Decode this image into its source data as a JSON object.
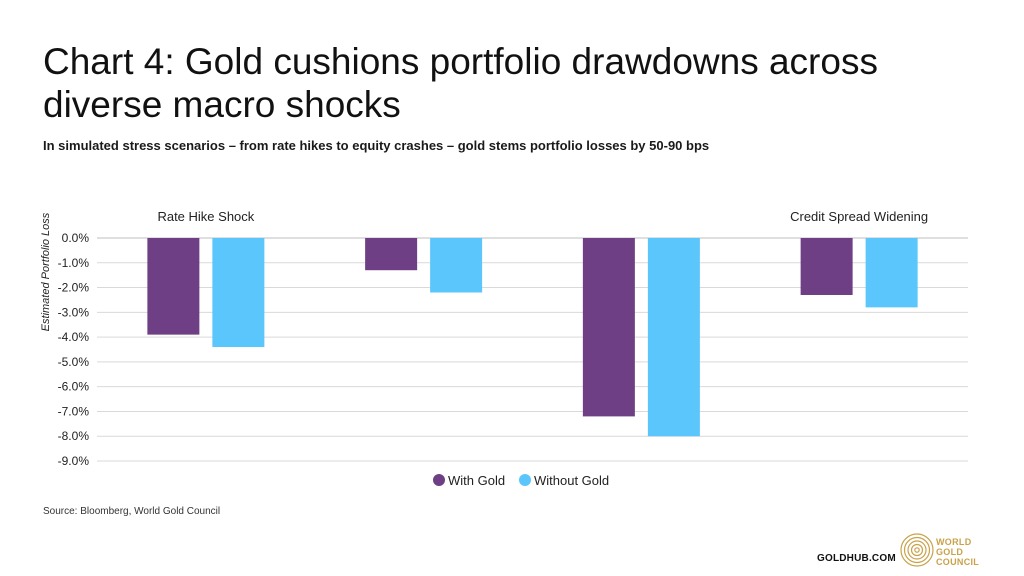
{
  "title": "Chart 4: Gold cushions portfolio drawdowns across diverse macro shocks",
  "subtitle": "In simulated stress scenarios – from rate hikes to equity crashes – gold stems portfolio losses by 50-90 bps",
  "source": "Source: Bloomberg, World Gold Council",
  "footer_url": "GOLDHUB.COM",
  "logo": {
    "line1": "WORLD",
    "line2": "GOLD",
    "line3": "COUNCIL",
    "icon": "concentric-circles-icon"
  },
  "colors": {
    "with_gold": "#6f3f86",
    "without_gold": "#5bc6fb",
    "grid": "#d9d9d9",
    "logo_gold": "#c9a24a"
  },
  "chart_data": {
    "type": "bar",
    "categories": [
      "Rate Hike Shock",
      "",
      "",
      "Credit Spread Widening"
    ],
    "series": [
      {
        "name": "With Gold",
        "values": [
          -3.9,
          -1.3,
          -7.2,
          -2.3
        ]
      },
      {
        "name": "Without Gold",
        "values": [
          -4.4,
          -2.2,
          -8.0,
          -2.8
        ]
      }
    ],
    "ylabel": "Estimated Portfolio Loss",
    "ylim": [
      -9,
      0
    ],
    "yticks": [
      "0.0%",
      "-1.0%",
      "-2.0%",
      "-3.0%",
      "-4.0%",
      "-5.0%",
      "-6.0%",
      "-7.0%",
      "-8.0%",
      "-9.0%"
    ],
    "grid": true,
    "legend": "bottom-center"
  }
}
